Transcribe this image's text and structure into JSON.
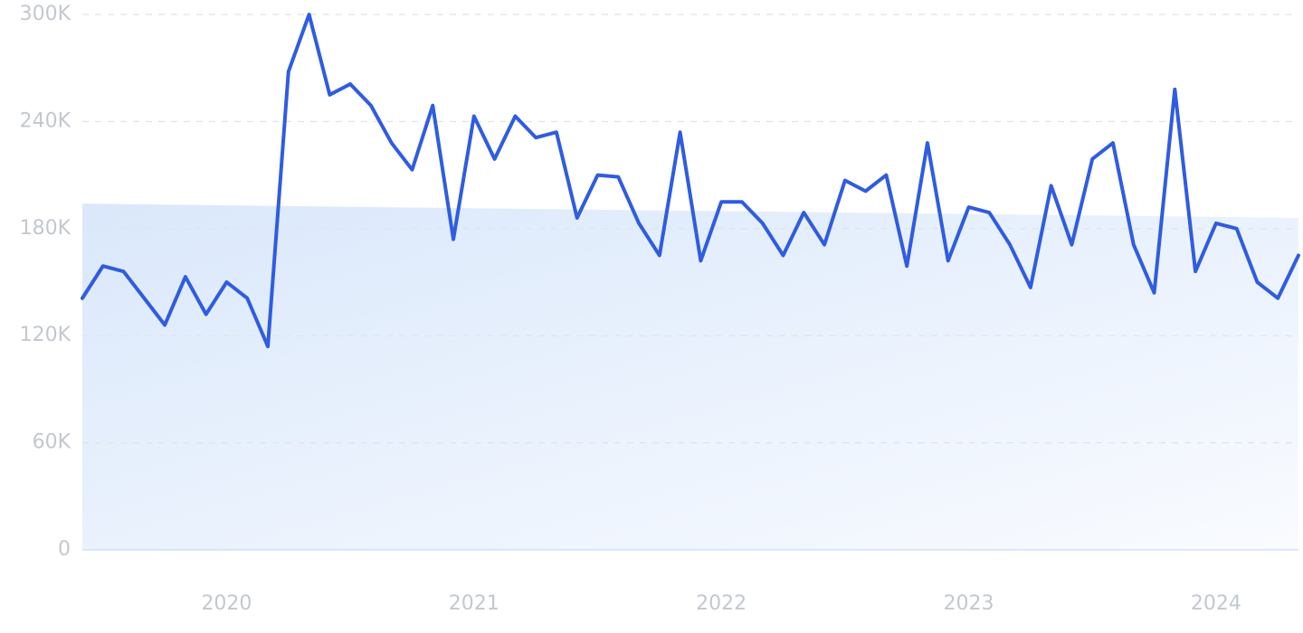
{
  "chart_data": {
    "type": "line",
    "x": [
      2019.4167,
      2019.5,
      2019.5833,
      2019.6667,
      2019.75,
      2019.8333,
      2019.9167,
      2020,
      2020.0833,
      2020.1667,
      2020.25,
      2020.3333,
      2020.4167,
      2020.5,
      2020.5833,
      2020.6667,
      2020.75,
      2020.8333,
      2020.9167,
      2021,
      2021.0833,
      2021.1667,
      2021.25,
      2021.3333,
      2021.4167,
      2021.5,
      2021.5833,
      2021.6667,
      2021.75,
      2021.8333,
      2021.9167,
      2022,
      2022.0833,
      2022.1667,
      2022.25,
      2022.3333,
      2022.4167,
      2022.5,
      2022.5833,
      2022.6667,
      2022.75,
      2022.8333,
      2022.9167,
      2023,
      2023.0833,
      2023.1667,
      2023.25,
      2023.3333,
      2023.4167,
      2023.5,
      2023.5833,
      2023.6667,
      2023.75,
      2023.8333,
      2023.9167,
      2024,
      2024.0833,
      2024.1667,
      2024.25,
      2024.3333
    ],
    "series": [
      {
        "color": "#2f5ce0",
        "values": [
          141000,
          159000,
          156000,
          141000,
          126000,
          153000,
          132000,
          150000,
          141000,
          114000,
          268000,
          300000,
          255000,
          261000,
          249000,
          228000,
          213000,
          249000,
          174000,
          243000,
          219000,
          243000,
          231000,
          234000,
          186000,
          210000,
          209000,
          183000,
          165000,
          234000,
          162000,
          195000,
          195000,
          183000,
          165000,
          189000,
          171000,
          207000,
          201000,
          210000,
          159000,
          228000,
          162000,
          192000,
          189000,
          171000,
          147000,
          204000,
          171000,
          219000,
          228000,
          171000,
          144000,
          258000,
          156000,
          183000,
          180000,
          150000,
          141000,
          165000
        ]
      }
    ],
    "trend": {
      "x": [
        2019.4167,
        2024.3333
      ],
      "values": [
        194000,
        186000
      ]
    },
    "xlim": [
      2019.4167,
      2024.3333
    ],
    "xticks": [
      2020,
      2021,
      2022,
      2023,
      2024
    ],
    "ylim": [
      0,
      300000
    ],
    "yticks": [
      0,
      {
        "value": 60000,
        "label": "60K"
      },
      {
        "value": 120000,
        "label": "120K"
      },
      {
        "value": 180000,
        "label": "180K"
      },
      {
        "value": 240000,
        "label": "240K"
      },
      {
        "value": 300000,
        "label": "300K"
      }
    ],
    "grid": true
  }
}
